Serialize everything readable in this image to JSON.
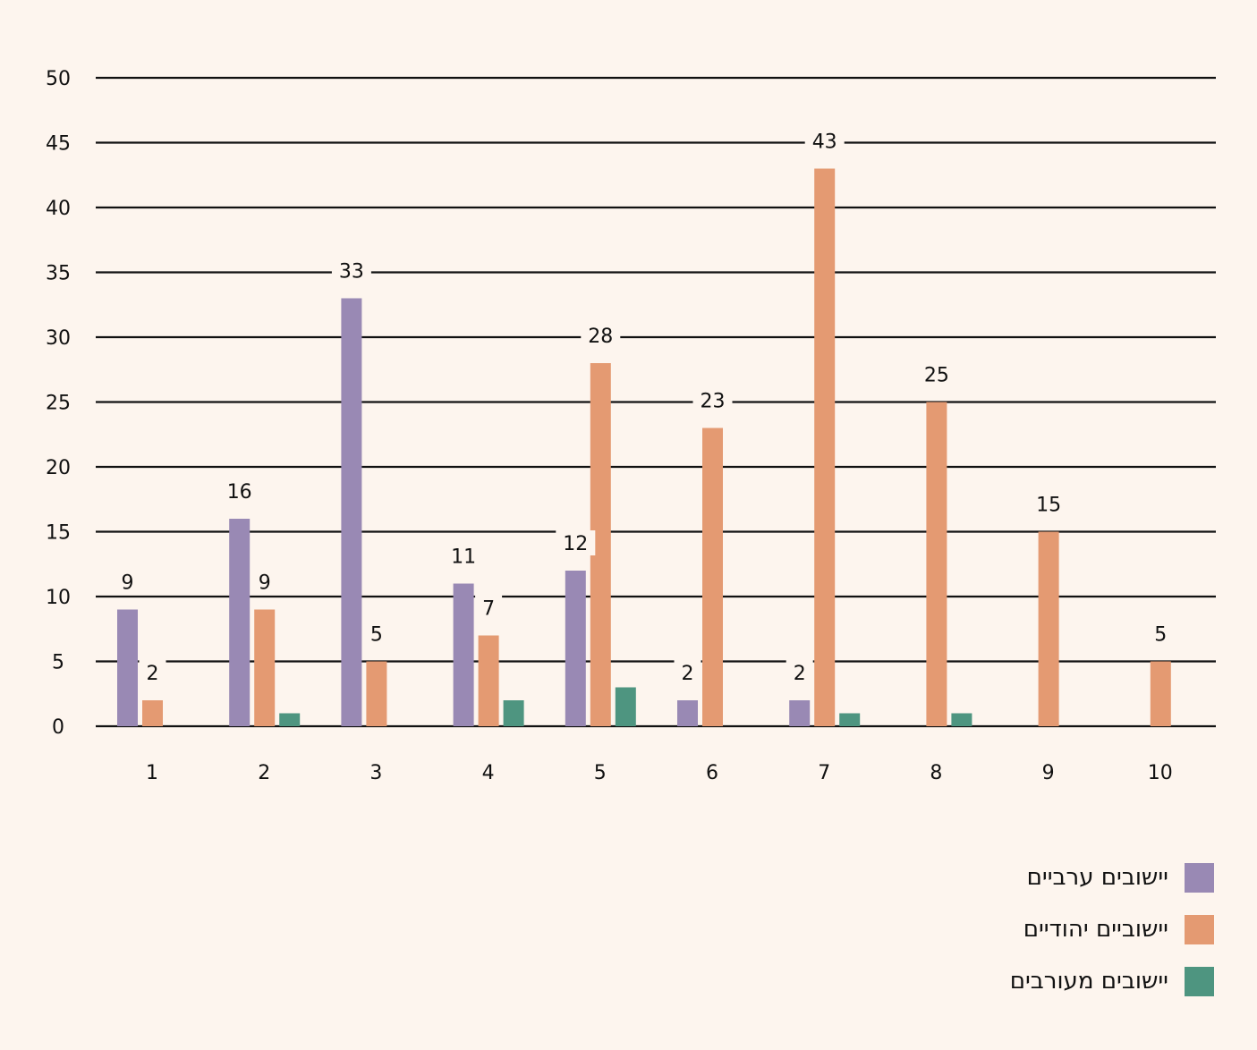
{
  "chart_data": {
    "type": "bar",
    "categories": [
      "1",
      "2",
      "3",
      "4",
      "5",
      "6",
      "7",
      "8",
      "9",
      "10"
    ],
    "series": [
      {
        "name": "יישובים ערביים",
        "color": "#9989b4",
        "values": [
          9,
          16,
          33,
          11,
          12,
          2,
          2,
          0,
          0,
          0
        ]
      },
      {
        "name": "יישוביים יהודיים",
        "color": "#e49a72",
        "values": [
          2,
          9,
          5,
          7,
          28,
          23,
          43,
          25,
          15,
          5
        ]
      },
      {
        "name": "יישובים מעורבים",
        "color": "#4e9580",
        "values": [
          0,
          1,
          0,
          2,
          3,
          0,
          1,
          1,
          0,
          0
        ]
      }
    ],
    "value_labels": [
      [
        "9",
        "16",
        "33",
        "11",
        "12",
        "2",
        "2",
        null,
        null,
        null
      ],
      [
        "2",
        "9",
        "5",
        "7",
        "28",
        "23",
        "43",
        "25",
        "15",
        "5"
      ],
      [
        null,
        null,
        null,
        null,
        null,
        null,
        null,
        null,
        null,
        null
      ]
    ],
    "ylim": [
      0,
      50
    ],
    "yticks": [
      0,
      5,
      10,
      15,
      20,
      25,
      30,
      35,
      40,
      45,
      50
    ],
    "grid": true,
    "legend_position": "bottom-right",
    "title": "",
    "xlabel": "",
    "ylabel": ""
  },
  "legend": {
    "items": [
      {
        "label": "יישובים ערביים",
        "color": "#9989b4"
      },
      {
        "label": "יישוביים יהודיים",
        "color": "#e49a72"
      },
      {
        "label": "יישובים מעורבים",
        "color": "#4e9580"
      }
    ]
  }
}
